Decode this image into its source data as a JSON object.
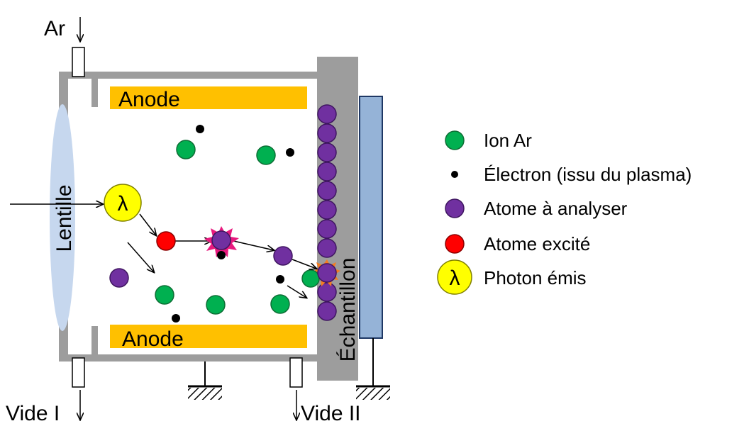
{
  "colors": {
    "chamber_wall": "#9d9d9d",
    "anode": "#ffc000",
    "lens": "#c6d7ee",
    "sample_backing": "#95b3d7",
    "ion_ar": "#00b050",
    "electron": "#000000",
    "atom_to_analyze": "#7030a0",
    "excited_atom": "#ff0000",
    "photon": "#ffff00",
    "sputter_burst_pink": "#e8197e",
    "sputter_burst_orange": "#f57b20"
  },
  "labels": {
    "gas_inlet": "Ar",
    "anode_top": "Anode",
    "anode_bottom": "Anode",
    "lens": "Lentille",
    "sample": "Échantillon",
    "vacuum_1": "Vide I",
    "vacuum_2": "Vide II",
    "photon_symbol": "λ"
  },
  "legend": [
    {
      "id": "ion-ar",
      "marker": "green-circle",
      "text": "Ion Ar"
    },
    {
      "id": "electron",
      "marker": "black-dot",
      "text": "Électron (issu du plasma)"
    },
    {
      "id": "atom",
      "marker": "purple-circle",
      "text": "Atome à analyser"
    },
    {
      "id": "excited",
      "marker": "red-circle",
      "text": "Atome excité"
    },
    {
      "id": "photon",
      "marker": "yellow-circle-lambda",
      "text": "Photon émis",
      "symbol": "λ"
    }
  ]
}
